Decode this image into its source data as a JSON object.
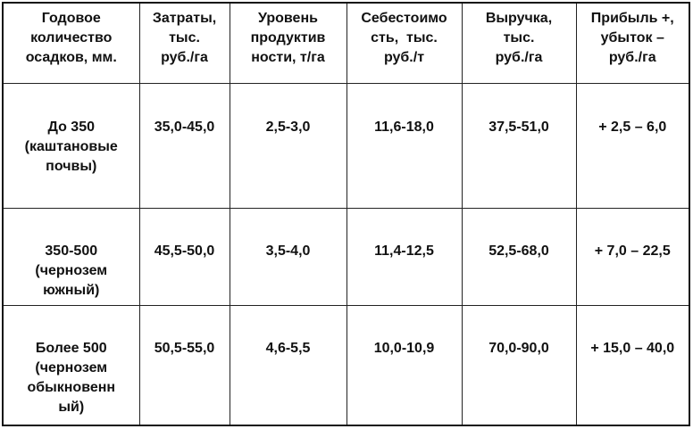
{
  "table": {
    "headers": [
      [
        "Годовое",
        "количество",
        "осадков, мм."
      ],
      [
        "Затраты,",
        "тыс.",
        "руб./га"
      ],
      [
        "Уровень",
        "продуктив",
        "ности, т/га"
      ],
      [
        "Себестоимо",
        "сть,  тыс.",
        "руб./т"
      ],
      [
        "Выручка,",
        "тыс.",
        "руб./га"
      ],
      [
        "Прибыль +,",
        "убыток –",
        "руб./га"
      ]
    ],
    "rows": [
      {
        "precip": [
          "До 350",
          "(каштановые",
          "почвы)"
        ],
        "costs": "35,0-45,0",
        "yield": "2,5-3,0",
        "cost_price": "11,6-18,0",
        "revenue": "37,5-51,0",
        "profit": "+ 2,5 – 6,0"
      },
      {
        "precip": [
          "350-500",
          "(чернозем",
          "южный)"
        ],
        "costs": "45,5-50,0",
        "yield": "3,5-4,0",
        "cost_price": "11,4-12,5",
        "revenue": "52,5-68,0",
        "profit": "+ 7,0 – 22,5"
      },
      {
        "precip": [
          "Более 500",
          "(чернозем",
          "обыкновенн",
          "ый)"
        ],
        "costs": "50,5-55,0",
        "yield": "4,6-5,5",
        "cost_price": "10,0-10,9",
        "revenue": "70,0-90,0",
        "profit": "+ 15,0 – 40,0"
      }
    ]
  }
}
